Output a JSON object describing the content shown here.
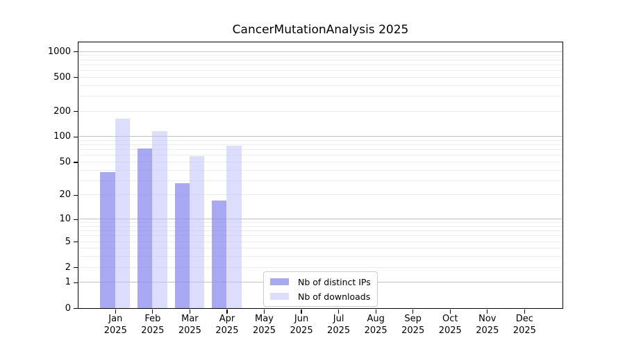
{
  "chart_data": {
    "type": "bar",
    "title": "CancerMutationAnalysis 2025",
    "categories": [
      "Jan",
      "Feb",
      "Mar",
      "Apr",
      "May",
      "Jun",
      "Jul",
      "Aug",
      "Sep",
      "Oct",
      "Nov",
      "Dec"
    ],
    "category_year": "2025",
    "series": [
      {
        "name": "Nb of distinct IPs",
        "color": "#8888ee",
        "alpha": 0.72,
        "values": [
          38,
          73,
          28,
          17,
          0,
          0,
          0,
          0,
          0,
          0,
          0,
          0
        ]
      },
      {
        "name": "Nb of downloads",
        "color": "#bbbbff",
        "alpha": 0.5,
        "values": [
          162,
          115,
          59,
          78,
          0,
          0,
          0,
          0,
          0,
          0,
          0,
          0
        ]
      }
    ],
    "xlabel": "",
    "ylabel": "",
    "y_scale": "log1p",
    "y_ticks": [
      1000,
      500,
      200,
      100,
      50,
      20,
      10,
      5,
      2,
      1,
      0
    ],
    "y_max": 1277,
    "grid": "major gridlines at powers of 10, minor gridlines at 2-9 per decade",
    "legend_position": "lower center"
  }
}
